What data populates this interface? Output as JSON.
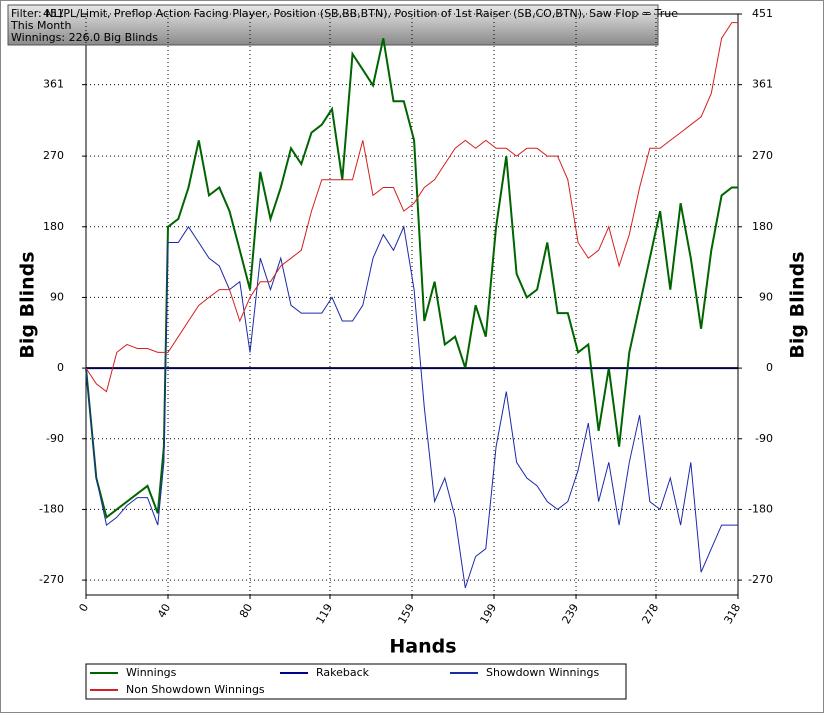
{
  "chart_data": {
    "type": "line",
    "annotations": [
      "Filter: NL/PL/Limit, Preflop Action Facing Player, Position (SB,BB,BTN), Position of 1st Raiser (SB,CO,BTN), Saw Flop = True",
      "This Month",
      "Winnings: 226.0 Big Blinds"
    ],
    "x_label": "Hands",
    "y_label": "Big Blinds",
    "y2_label": "Big Blinds",
    "x": [
      0,
      5,
      10,
      15,
      20,
      25,
      30,
      35,
      38,
      40,
      45,
      50,
      55,
      60,
      65,
      70,
      75,
      80,
      85,
      90,
      95,
      100,
      105,
      110,
      115,
      120,
      125,
      130,
      135,
      140,
      145,
      150,
      155,
      160,
      165,
      170,
      175,
      180,
      185,
      190,
      195,
      200,
      205,
      210,
      215,
      220,
      225,
      230,
      235,
      240,
      245,
      250,
      255,
      260,
      265,
      270,
      275,
      280,
      285,
      290,
      295,
      300,
      305,
      310,
      315,
      318
    ],
    "series": [
      {
        "name": "Winnings",
        "color": "#006400",
        "values": [
          0,
          -140,
          -190,
          -180,
          -170,
          -160,
          -150,
          -185,
          -100,
          180,
          190,
          230,
          290,
          220,
          230,
          200,
          150,
          100,
          250,
          190,
          230,
          280,
          260,
          300,
          310,
          330,
          240,
          400,
          380,
          360,
          420,
          340,
          340,
          290,
          60,
          110,
          30,
          40,
          0,
          80,
          40,
          180,
          270,
          120,
          90,
          100,
          160,
          70,
          70,
          20,
          30,
          -80,
          0,
          -100,
          20,
          80,
          140,
          200,
          100,
          210,
          140,
          50,
          150,
          220,
          230,
          230
        ]
      },
      {
        "name": "Rakeback",
        "color": "#00008b",
        "values": [
          0,
          0,
          0,
          0,
          0,
          0,
          0,
          0,
          0,
          0,
          0,
          0,
          0,
          0,
          0,
          0,
          0,
          0,
          0,
          0,
          0,
          0,
          0,
          0,
          0,
          0,
          0,
          0,
          0,
          0,
          0,
          0,
          0,
          0,
          0,
          0,
          0,
          0,
          0,
          0,
          0,
          0,
          0,
          0,
          0,
          0,
          0,
          0,
          0,
          0,
          0,
          0,
          0,
          0,
          0,
          0,
          0,
          0,
          0,
          0,
          0,
          0,
          0,
          0,
          0,
          0
        ]
      },
      {
        "name": "Showdown Winnings",
        "color": "#1c2aa8",
        "values": [
          0,
          -140,
          -200,
          -190,
          -175,
          -165,
          -165,
          -200,
          -120,
          160,
          160,
          180,
          160,
          140,
          130,
          100,
          110,
          20,
          140,
          100,
          140,
          80,
          70,
          70,
          70,
          90,
          60,
          60,
          80,
          140,
          170,
          150,
          180,
          100,
          -50,
          -170,
          -140,
          -190,
          -280,
          -240,
          -230,
          -100,
          -30,
          -120,
          -140,
          -150,
          -170,
          -180,
          -170,
          -130,
          -70,
          -170,
          -120,
          -200,
          -120,
          -60,
          -170,
          -180,
          -140,
          -200,
          -120,
          -260,
          -230,
          -200,
          -200,
          -200
        ]
      },
      {
        "name": "Non Showdown Winnings",
        "color": "#d42020",
        "values": [
          0,
          -20,
          -30,
          20,
          30,
          25,
          25,
          20,
          20,
          20,
          40,
          60,
          80,
          90,
          100,
          100,
          60,
          90,
          110,
          110,
          130,
          140,
          150,
          200,
          240,
          240,
          240,
          240,
          290,
          220,
          230,
          230,
          200,
          210,
          230,
          240,
          260,
          280,
          290,
          280,
          290,
          280,
          280,
          270,
          280,
          280,
          270,
          270,
          240,
          160,
          140,
          150,
          180,
          130,
          170,
          230,
          280,
          280,
          290,
          300,
          310,
          320,
          350,
          420,
          440,
          440
        ]
      }
    ],
    "xlim": [
      0,
      318
    ],
    "xticks": [
      0,
      40,
      80,
      119,
      159,
      199,
      239,
      278,
      318
    ],
    "ylim": [
      -289,
      451
    ],
    "yticks": [
      451,
      361,
      270,
      180,
      90,
      0,
      -90,
      -180,
      -270
    ],
    "grid": true
  }
}
